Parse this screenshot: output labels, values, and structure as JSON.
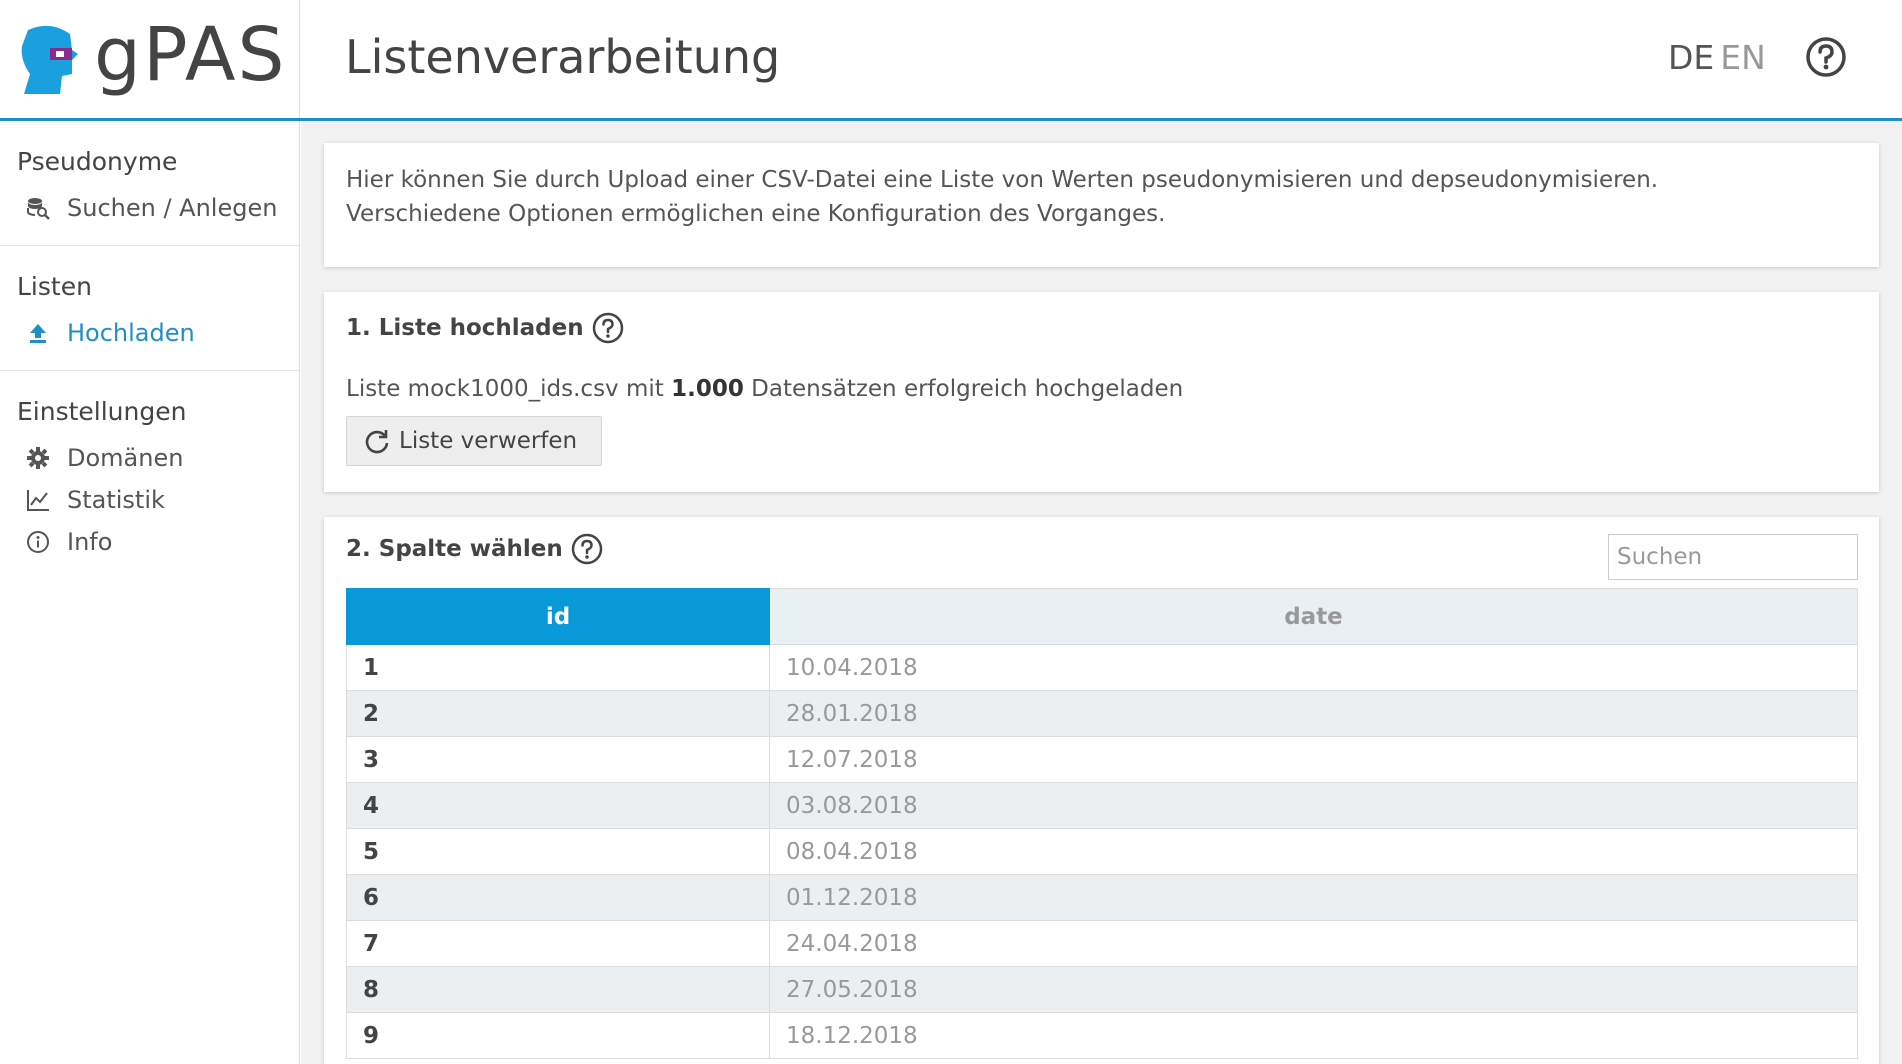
{
  "app": {
    "name": "gPAS",
    "page_title": "Listenverarbeitung"
  },
  "header": {
    "lang_de": "DE",
    "lang_en": "EN"
  },
  "sidebar": {
    "sections": [
      {
        "heading": "Pseudonyme",
        "items": [
          {
            "label": "Suchen / Anlegen",
            "icon": "search-database-icon"
          }
        ]
      },
      {
        "heading": "Listen",
        "items": [
          {
            "label": "Hochladen",
            "icon": "upload-icon",
            "active": true
          }
        ]
      },
      {
        "heading": "Einstellungen",
        "items": [
          {
            "label": "Domänen",
            "icon": "gear-icon"
          },
          {
            "label": "Statistik",
            "icon": "chart-line-icon"
          },
          {
            "label": "Info",
            "icon": "info-icon"
          }
        ]
      }
    ]
  },
  "intro": {
    "line1": "Hier können Sie durch Upload einer CSV-Datei eine Liste von Werten pseudonymisieren und depseudonymisieren.",
    "line2": "Verschiedene Optionen ermöglichen eine Konfiguration des Vorganges."
  },
  "upload": {
    "title": "1. Liste hochladen",
    "status_prefix": "Liste mock1000_ids.csv mit ",
    "status_count": "1.000",
    "status_suffix": " Datensätzen erfolgreich hochgeladen",
    "discard_button": "Liste verwerfen"
  },
  "column": {
    "title": "2. Spalte wählen",
    "search_placeholder": "Suchen",
    "headers": [
      "id",
      "date"
    ],
    "rows": [
      [
        "1",
        "10.04.2018"
      ],
      [
        "2",
        "28.01.2018"
      ],
      [
        "3",
        "12.07.2018"
      ],
      [
        "4",
        "03.08.2018"
      ],
      [
        "5",
        "08.04.2018"
      ],
      [
        "6",
        "01.12.2018"
      ],
      [
        "7",
        "24.04.2018"
      ],
      [
        "8",
        "27.05.2018"
      ],
      [
        "9",
        "18.12.2018"
      ]
    ]
  },
  "colors": {
    "accent": "#1f8fc9",
    "selected_column": "#0a99d8"
  }
}
